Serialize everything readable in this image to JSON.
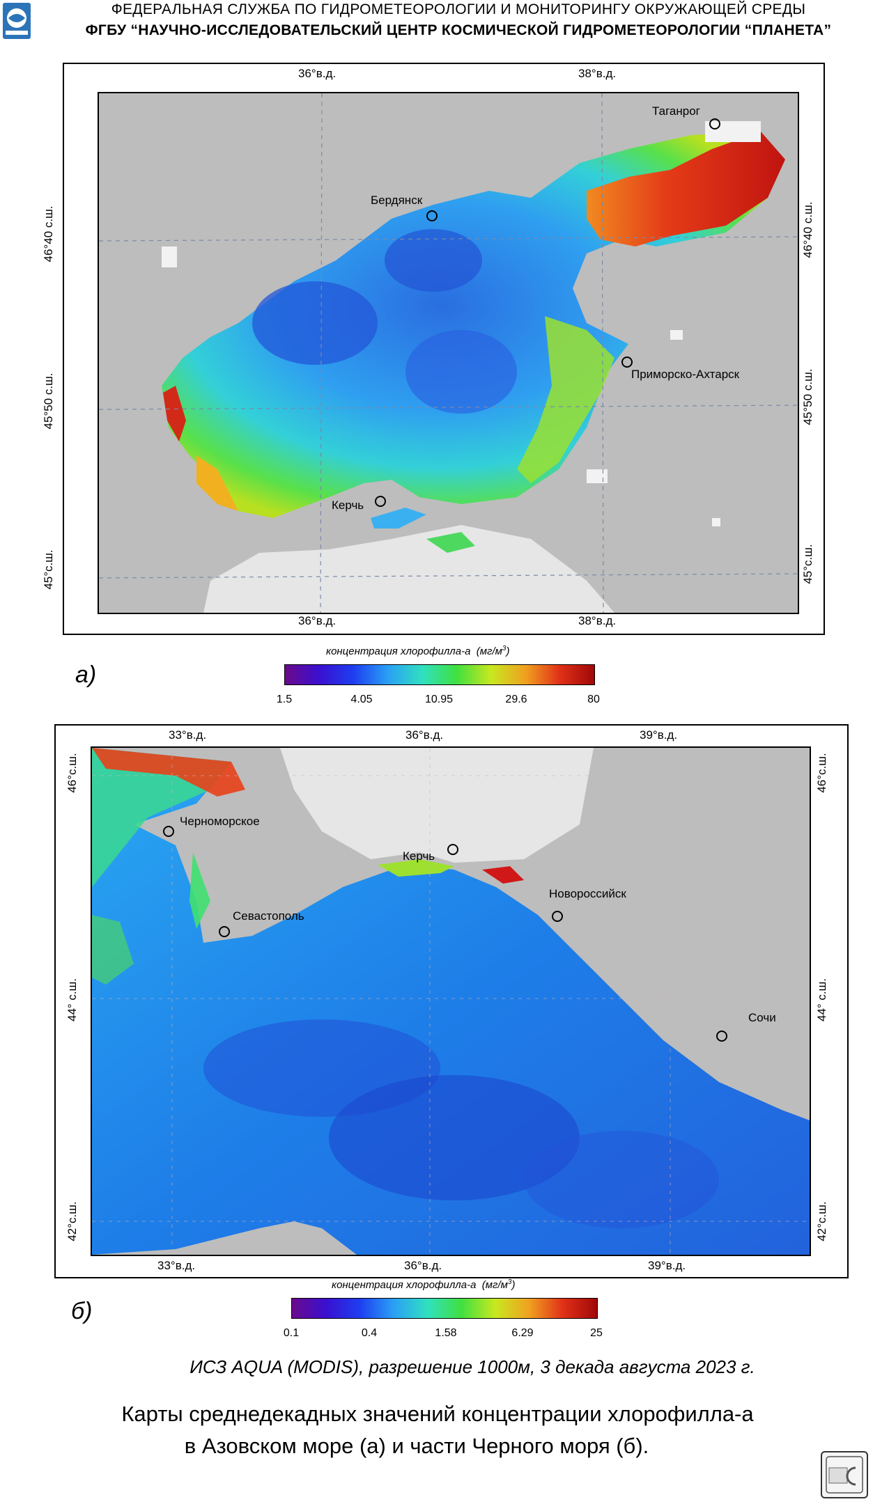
{
  "header": {
    "line1": "ФЕДЕРАЛЬНАЯ  СЛУЖБА  ПО ГИДРОМЕТЕОРОЛОГИИ И МОНИТОРИНГУ ОКРУЖАЮЩЕЙ СРЕДЫ",
    "line2": "ФГБУ “НАУЧНО-ИССЛЕДОВАТЕЛЬСКИЙ ЦЕНТР КОСМИЧЕСКОЙ ГИДРОМЕТЕОРОЛОГИИ “ПЛАНЕТА”"
  },
  "map_a": {
    "panel_label": "а)",
    "lon_labels": [
      "36°в.д.",
      "38°в.д."
    ],
    "lat_labels": [
      "46°40 с.ш.",
      "45°50 с.ш.",
      "45°с.ш."
    ],
    "cities": [
      "Таганрог",
      "Бердянск",
      "Приморско-Ахтарск",
      "Керчь"
    ],
    "colorbar": {
      "title": "концентрация хлорофилла-а",
      "unit": "мг/м",
      "unit_sup": "3",
      "ticks": [
        "1.5",
        "4.05",
        "10.95",
        "29.6",
        "80"
      ]
    }
  },
  "map_b": {
    "panel_label": "б)",
    "lon_labels": [
      "33°в.д.",
      "36°в.д.",
      "39°в.д."
    ],
    "lat_labels": [
      "46°с.ш.",
      "44° с.ш.",
      "42°с.ш."
    ],
    "cities": [
      "Черноморское",
      "Керчь",
      "Новороссийск",
      "Севастополь",
      "Сочи"
    ],
    "colorbar": {
      "title": "концентрация хлорофилла-а",
      "unit": "мг/м",
      "unit_sup": "3",
      "ticks": [
        "0.1",
        "0.4",
        "1.58",
        "6.29",
        "25"
      ]
    }
  },
  "caption": {
    "satellite": "ИСЗ AQUA (MODIS), разрешение 1000м, 3 декада августа 2023 г.",
    "title_line1": "Карты среднедекадных значений концентрации хлорофилла-а",
    "title_line2": "в Азовском море (а) и части Черного моря (б)."
  },
  "colors": {
    "land": "#bdbdbd",
    "cloud": "#e6e6e6",
    "low": "#1e4bd6",
    "mid": "#2aa7f0",
    "green": "#43d14a",
    "high": "#d6201b"
  }
}
